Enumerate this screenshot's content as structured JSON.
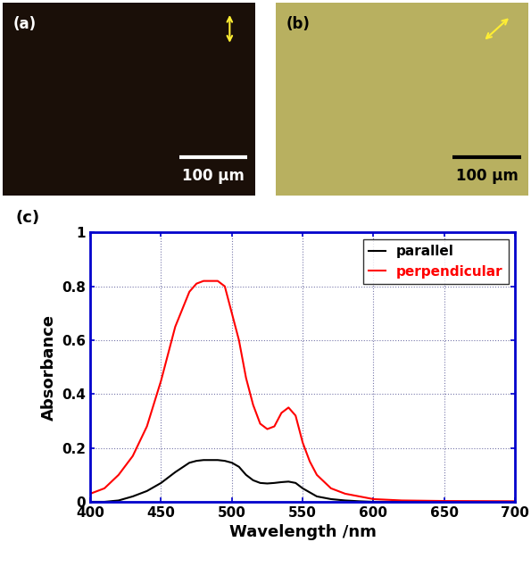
{
  "images": [
    {
      "label": "(a)",
      "scale_bar": "100 µm"
    },
    {
      "label": "(b)",
      "scale_bar": "100 µm"
    }
  ],
  "chart_data": {
    "type": "line",
    "panel_label": "(c)",
    "x_label": "Wavelength /nm",
    "y_label": "Absorbance",
    "x": [
      400,
      410,
      420,
      430,
      440,
      450,
      460,
      470,
      475,
      480,
      490,
      495,
      500,
      505,
      510,
      515,
      520,
      525,
      530,
      535,
      540,
      545,
      550,
      555,
      560,
      570,
      580,
      590,
      600,
      620,
      650,
      700
    ],
    "series": [
      {
        "name": "parallel",
        "color": "#000000",
        "values": [
          0,
          0,
          0.005,
          0.02,
          0.04,
          0.07,
          0.11,
          0.145,
          0.152,
          0.155,
          0.155,
          0.152,
          0.145,
          0.13,
          0.1,
          0.08,
          0.07,
          0.068,
          0.07,
          0.073,
          0.075,
          0.07,
          0.05,
          0.035,
          0.02,
          0.01,
          0.005,
          0.002,
          0,
          0,
          0,
          0
        ]
      },
      {
        "name": "perpendicular",
        "color": "#ff0000",
        "values": [
          0.03,
          0.05,
          0.1,
          0.17,
          0.28,
          0.45,
          0.65,
          0.78,
          0.81,
          0.82,
          0.82,
          0.8,
          0.7,
          0.6,
          0.46,
          0.36,
          0.29,
          0.27,
          0.28,
          0.33,
          0.35,
          0.32,
          0.22,
          0.15,
          0.1,
          0.05,
          0.03,
          0.02,
          0.01,
          0.005,
          0.003,
          0.002
        ]
      }
    ],
    "xlim": [
      400,
      700
    ],
    "xticks": [
      400,
      450,
      500,
      550,
      600,
      650,
      700
    ],
    "ylim": [
      0,
      1
    ],
    "yticks": [
      0,
      0.2,
      0.4,
      0.6,
      0.8,
      1
    ],
    "grid": true,
    "legend": "upper right"
  }
}
